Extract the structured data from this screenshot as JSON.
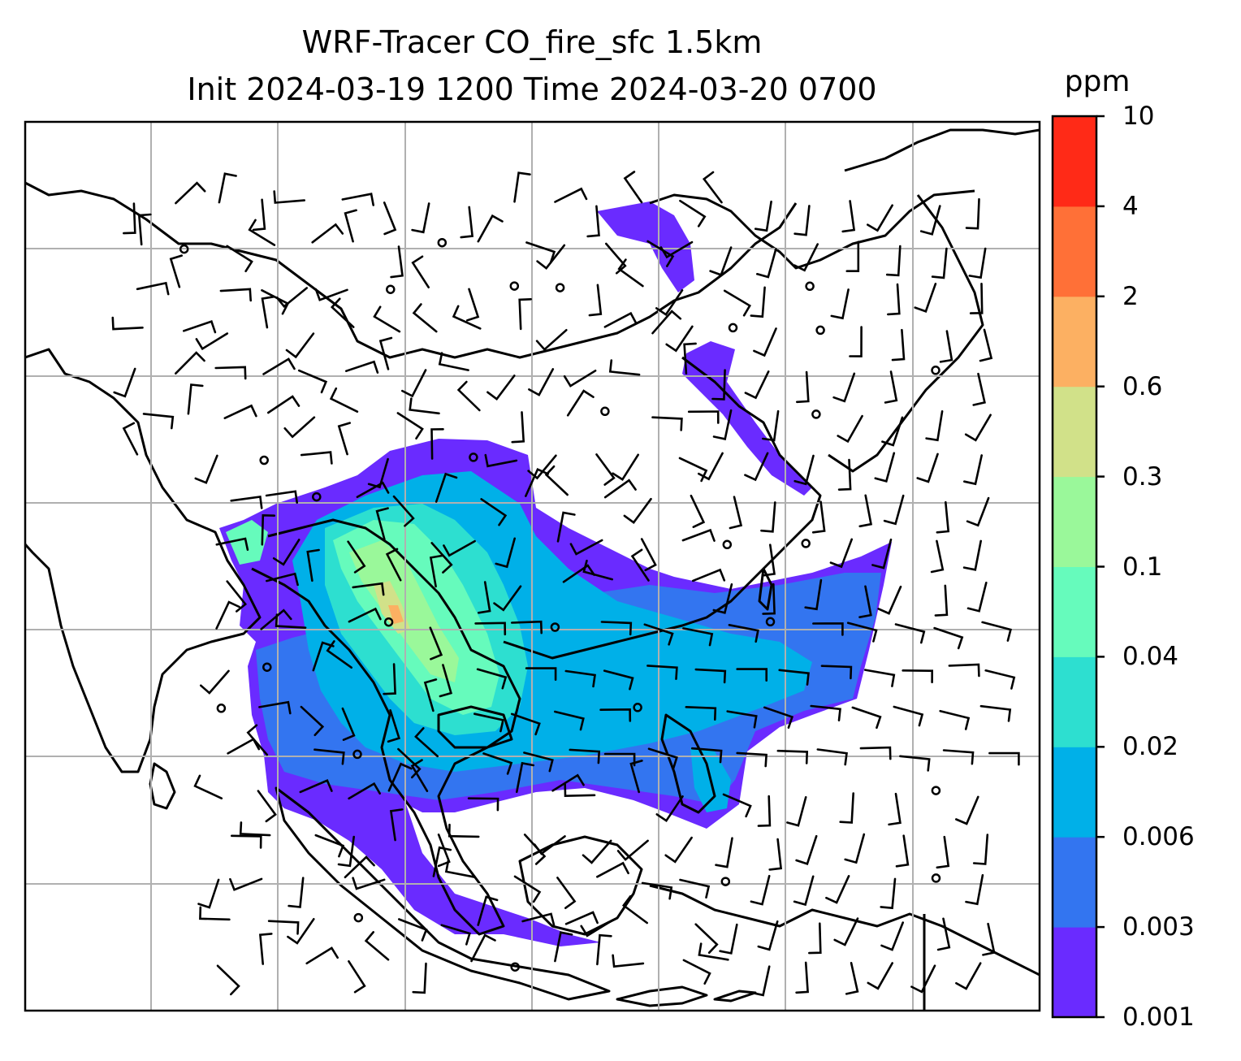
{
  "title": {
    "line1": "WRF-Tracer CO_fire_sfc 1.5km",
    "line2": "Init 2024-03-19 1200 Time 2024-03-20 0700"
  },
  "colorbar": {
    "unit": "ppm",
    "levels": [
      "0.001",
      "0.003",
      "0.006",
      "0.02",
      "0.04",
      "0.1",
      "0.3",
      "0.6",
      "2",
      "4",
      "10"
    ],
    "colors": [
      "#6a2bff",
      "#3375f0",
      "#00b0e8",
      "#2ddfd0",
      "#66fbbc",
      "#9af89a",
      "#d1e189",
      "#fcb062",
      "#ff7037",
      "#ff2a17"
    ]
  },
  "map": {
    "gridlines": true,
    "background": "#ffffff",
    "coastline_color": "#000000",
    "wind_barbs": true
  }
}
